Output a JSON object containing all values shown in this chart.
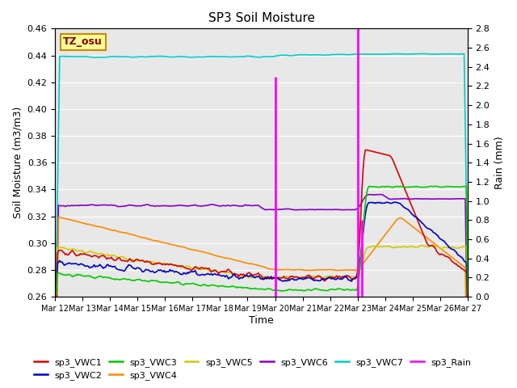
{
  "title": "SP3 Soil Moisture",
  "xlabel": "Time",
  "ylabel_left": "Soil Moisture (m3/m3)",
  "ylabel_right": "Rain (mm)",
  "bg_color": "#e8e8e8",
  "label_box": "TZ_osu",
  "ylim_left": [
    0.26,
    0.46
  ],
  "ylim_right": [
    0.0,
    2.8
  ],
  "colors": {
    "VWC1": "#dd0000",
    "VWC2": "#0000cc",
    "VWC3": "#00cc00",
    "VWC4": "#ff8800",
    "VWC5": "#cccc00",
    "VWC6": "#8800cc",
    "VWC7": "#00cccc",
    "Rain": "#ff00ff"
  },
  "legend_order": [
    "sp3_VWC1",
    "sp3_VWC2",
    "sp3_VWC3",
    "sp3_VWC4",
    "sp3_VWC5",
    "sp3_VWC6",
    "sp3_VWC7",
    "sp3_Rain"
  ]
}
